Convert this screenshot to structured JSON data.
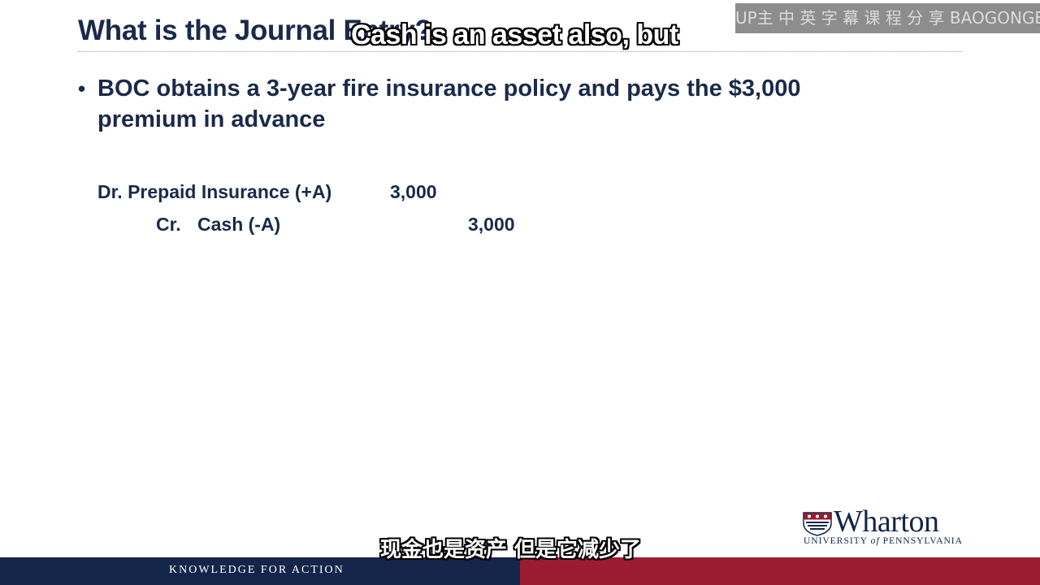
{
  "slide": {
    "title": "What is the Journal Entry?",
    "bullets": [
      "BOC obtains a 3-year fire insurance policy and pays the $3,000 premium in advance"
    ]
  },
  "journal_entry": {
    "debit": {
      "label": "Dr. Prepaid Insurance (+A)",
      "amount": "3,000"
    },
    "credit": {
      "prefix": "Cr.",
      "label": "Cash (-A)",
      "amount": "3,000"
    }
  },
  "subtitles": {
    "english": "Cash is an asset also, but",
    "chinese": "现金也是资产 但是它减少了"
  },
  "watermark": {
    "text": "UP主 中 英 字 幕 课 程 分 享 BAOGONGEE.com"
  },
  "branding": {
    "wordmark": "Wharton",
    "university_line_1": "UNIVERSITY ",
    "university_of": "of",
    "university_line_2": " PENNSYLVANIA",
    "tagline": "KNOWLEDGE FOR ACTION"
  },
  "colors": {
    "navy": "#14254a",
    "title_text": "#1b2a4a",
    "red": "#9b1c2e",
    "watermark_bg": "#8d8d8d"
  },
  "icons": {
    "logo_shield": "penn-shield-icon",
    "bullet": "bullet-dot-icon"
  }
}
